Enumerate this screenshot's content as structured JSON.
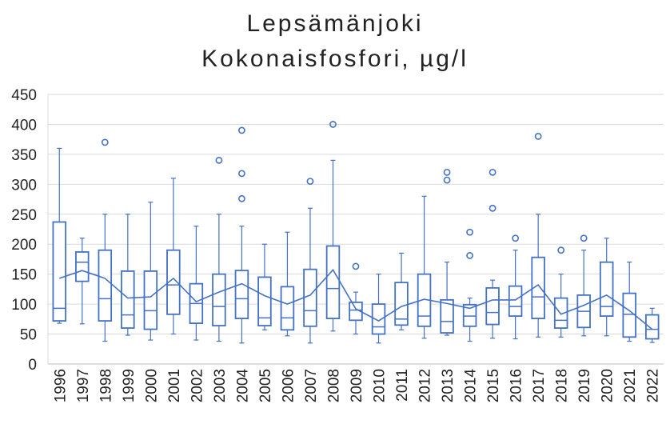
{
  "chart_data": {
    "type": "box",
    "title": "Lepsämänjoki",
    "subtitle": "Kokonaisfosfori, µg/l",
    "xlabel": "",
    "ylabel": "",
    "ylim": [
      0,
      450
    ],
    "yticks": [
      0,
      50,
      100,
      150,
      200,
      250,
      300,
      350,
      400,
      450
    ],
    "grid": true,
    "legend": "none",
    "colors": {
      "box": "#4472c4",
      "grid": "#d9d9d9",
      "text": "#222222"
    },
    "categories": [
      "1996",
      "1997",
      "1998",
      "1999",
      "2000",
      "2001",
      "2002",
      "2003",
      "2004",
      "2005",
      "2006",
      "2007",
      "2008",
      "2009",
      "2010",
      "2011",
      "2012",
      "2013",
      "2014",
      "2015",
      "2016",
      "2017",
      "2018",
      "2019",
      "2020",
      "2021",
      "2022"
    ],
    "boxes": [
      {
        "min": 68,
        "q1": 72,
        "median": 93,
        "q3": 237,
        "max": 360,
        "mean": 143,
        "outliers": []
      },
      {
        "min": 67,
        "q1": 138,
        "median": 170,
        "q3": 187,
        "max": 210,
        "mean": 156,
        "outliers": []
      },
      {
        "min": 38,
        "q1": 72,
        "median": 109,
        "q3": 190,
        "max": 250,
        "mean": 143,
        "outliers": [
          370
        ]
      },
      {
        "min": 48,
        "q1": 60,
        "median": 82,
        "q3": 155,
        "max": 250,
        "mean": 110,
        "outliers": []
      },
      {
        "min": 40,
        "q1": 58,
        "median": 89,
        "q3": 155,
        "max": 270,
        "mean": 112,
        "outliers": []
      },
      {
        "min": 50,
        "q1": 83,
        "median": 132,
        "q3": 190,
        "max": 310,
        "mean": 143,
        "outliers": []
      },
      {
        "min": 40,
        "q1": 68,
        "median": 101,
        "q3": 134,
        "max": 230,
        "mean": 104,
        "outliers": []
      },
      {
        "min": 38,
        "q1": 64,
        "median": 96,
        "q3": 150,
        "max": 250,
        "mean": 120,
        "outliers": [
          340
        ]
      },
      {
        "min": 35,
        "q1": 76,
        "median": 109,
        "q3": 156,
        "max": 230,
        "mean": 134,
        "outliers": [
          390,
          318,
          276
        ]
      },
      {
        "min": 57,
        "q1": 64,
        "median": 77,
        "q3": 145,
        "max": 200,
        "mean": 114,
        "outliers": []
      },
      {
        "min": 47,
        "q1": 57,
        "median": 77,
        "q3": 129,
        "max": 220,
        "mean": 100,
        "outliers": []
      },
      {
        "min": 35,
        "q1": 63,
        "median": 89,
        "q3": 158,
        "max": 260,
        "mean": 115,
        "outliers": [
          305
        ]
      },
      {
        "min": 55,
        "q1": 76,
        "median": 126,
        "q3": 197,
        "max": 340,
        "mean": 157,
        "outliers": [
          400
        ]
      },
      {
        "min": 50,
        "q1": 73,
        "median": 90,
        "q3": 103,
        "max": 120,
        "mean": 92,
        "outliers": [
          163
        ]
      },
      {
        "min": 35,
        "q1": 50,
        "median": 62,
        "q3": 100,
        "max": 150,
        "mean": 72,
        "outliers": []
      },
      {
        "min": 57,
        "q1": 65,
        "median": 75,
        "q3": 136,
        "max": 185,
        "mean": 96,
        "outliers": []
      },
      {
        "min": 43,
        "q1": 63,
        "median": 80,
        "q3": 150,
        "max": 280,
        "mean": 108,
        "outliers": []
      },
      {
        "min": 48,
        "q1": 52,
        "median": 71,
        "q3": 107,
        "max": 170,
        "mean": 101,
        "outliers": [
          320,
          307
        ]
      },
      {
        "min": 38,
        "q1": 63,
        "median": 80,
        "q3": 99,
        "max": 110,
        "mean": 93,
        "outliers": [
          220,
          181
        ]
      },
      {
        "min": 43,
        "q1": 66,
        "median": 86,
        "q3": 127,
        "max": 140,
        "mean": 107,
        "outliers": [
          320,
          260
        ]
      },
      {
        "min": 42,
        "q1": 80,
        "median": 96,
        "q3": 130,
        "max": 190,
        "mean": 107,
        "outliers": [
          210
        ]
      },
      {
        "min": 45,
        "q1": 76,
        "median": 112,
        "q3": 178,
        "max": 250,
        "mean": 132,
        "outliers": [
          380
        ]
      },
      {
        "min": 45,
        "q1": 60,
        "median": 73,
        "q3": 110,
        "max": 150,
        "mean": 83,
        "outliers": [
          190
        ]
      },
      {
        "min": 47,
        "q1": 61,
        "median": 88,
        "q3": 115,
        "max": 190,
        "mean": 98,
        "outliers": [
          210
        ]
      },
      {
        "min": 47,
        "q1": 80,
        "median": 96,
        "q3": 170,
        "max": 210,
        "mean": 115,
        "outliers": []
      },
      {
        "min": 38,
        "q1": 45,
        "median": 83,
        "q3": 118,
        "max": 170,
        "mean": 89,
        "outliers": []
      },
      {
        "min": 36,
        "q1": 42,
        "median": 58,
        "q3": 82,
        "max": 93,
        "mean": 58,
        "outliers": []
      }
    ]
  }
}
